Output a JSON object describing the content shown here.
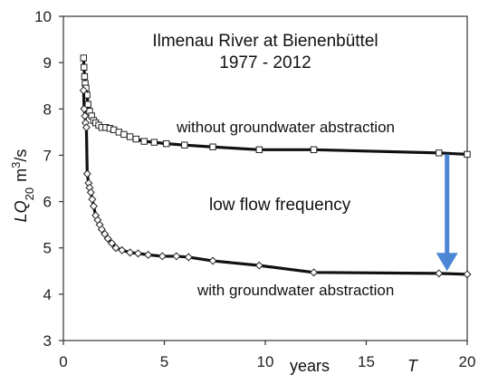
{
  "chart_data": {
    "type": "line",
    "title_lines": [
      "Ilmenau River at Bienenbüttel",
      "1977 - 2012"
    ],
    "ylabel": "LQ20 m³/s",
    "ylabel_parts": {
      "main": "LQ",
      "sub": "20",
      "unit": "m",
      "sup": "3",
      "unit_end": "/s"
    },
    "xlabel": "years",
    "xlabel_var": "T",
    "xlim": [
      0,
      20
    ],
    "ylim": [
      3,
      10
    ],
    "x_ticks": [
      "0",
      "5",
      "10",
      "15",
      "20"
    ],
    "y_ticks": [
      "3",
      "4",
      "5",
      "6",
      "7",
      "8",
      "9",
      "10"
    ],
    "annotations": {
      "upper": "without groundwater abstraction",
      "middle": "low flow frequency",
      "lower": "with groundwater abstraction"
    },
    "arrow": {
      "x": 19.0,
      "from": 7.02,
      "to": 4.5,
      "color": "#4a86d4"
    },
    "series": [
      {
        "marker": "square",
        "points": [
          [
            1.0,
            9.1
          ],
          [
            1.02,
            8.9
          ],
          [
            1.05,
            8.7
          ],
          [
            1.08,
            8.55
          ],
          [
            1.12,
            8.45
          ],
          [
            1.17,
            8.3
          ],
          [
            1.22,
            8.1
          ],
          [
            1.3,
            7.95
          ],
          [
            1.4,
            7.85
          ],
          [
            1.5,
            7.75
          ],
          [
            1.6,
            7.7
          ],
          [
            1.75,
            7.65
          ],
          [
            1.9,
            7.6
          ],
          [
            2.1,
            7.6
          ],
          [
            2.3,
            7.58
          ],
          [
            2.5,
            7.55
          ],
          [
            2.75,
            7.5
          ],
          [
            3.0,
            7.45
          ],
          [
            3.3,
            7.4
          ],
          [
            3.6,
            7.35
          ],
          [
            4.0,
            7.3
          ],
          [
            4.5,
            7.28
          ],
          [
            5.1,
            7.25
          ],
          [
            6.0,
            7.22
          ],
          [
            7.4,
            7.18
          ],
          [
            9.7,
            7.12
          ],
          [
            12.4,
            7.12
          ],
          [
            18.6,
            7.05
          ],
          [
            20.0,
            7.02
          ]
        ]
      },
      {
        "marker": "diamond",
        "points": [
          [
            1.0,
            8.4
          ],
          [
            1.03,
            8.0
          ],
          [
            1.07,
            7.85
          ],
          [
            1.1,
            7.7
          ],
          [
            1.14,
            7.6
          ],
          [
            1.18,
            6.6
          ],
          [
            1.25,
            6.4
          ],
          [
            1.3,
            6.3
          ],
          [
            1.36,
            6.2
          ],
          [
            1.43,
            6.05
          ],
          [
            1.5,
            5.9
          ],
          [
            1.6,
            5.7
          ],
          [
            1.7,
            5.6
          ],
          [
            1.8,
            5.5
          ],
          [
            1.9,
            5.4
          ],
          [
            2.05,
            5.3
          ],
          [
            2.2,
            5.2
          ],
          [
            2.4,
            5.1
          ],
          [
            2.6,
            5.0
          ],
          [
            2.9,
            4.95
          ],
          [
            3.3,
            4.9
          ],
          [
            3.7,
            4.88
          ],
          [
            4.2,
            4.85
          ],
          [
            4.9,
            4.82
          ],
          [
            5.6,
            4.82
          ],
          [
            6.2,
            4.8
          ],
          [
            7.4,
            4.72
          ],
          [
            9.7,
            4.62
          ],
          [
            12.4,
            4.47
          ],
          [
            18.6,
            4.45
          ],
          [
            20.0,
            4.43
          ]
        ]
      }
    ]
  }
}
